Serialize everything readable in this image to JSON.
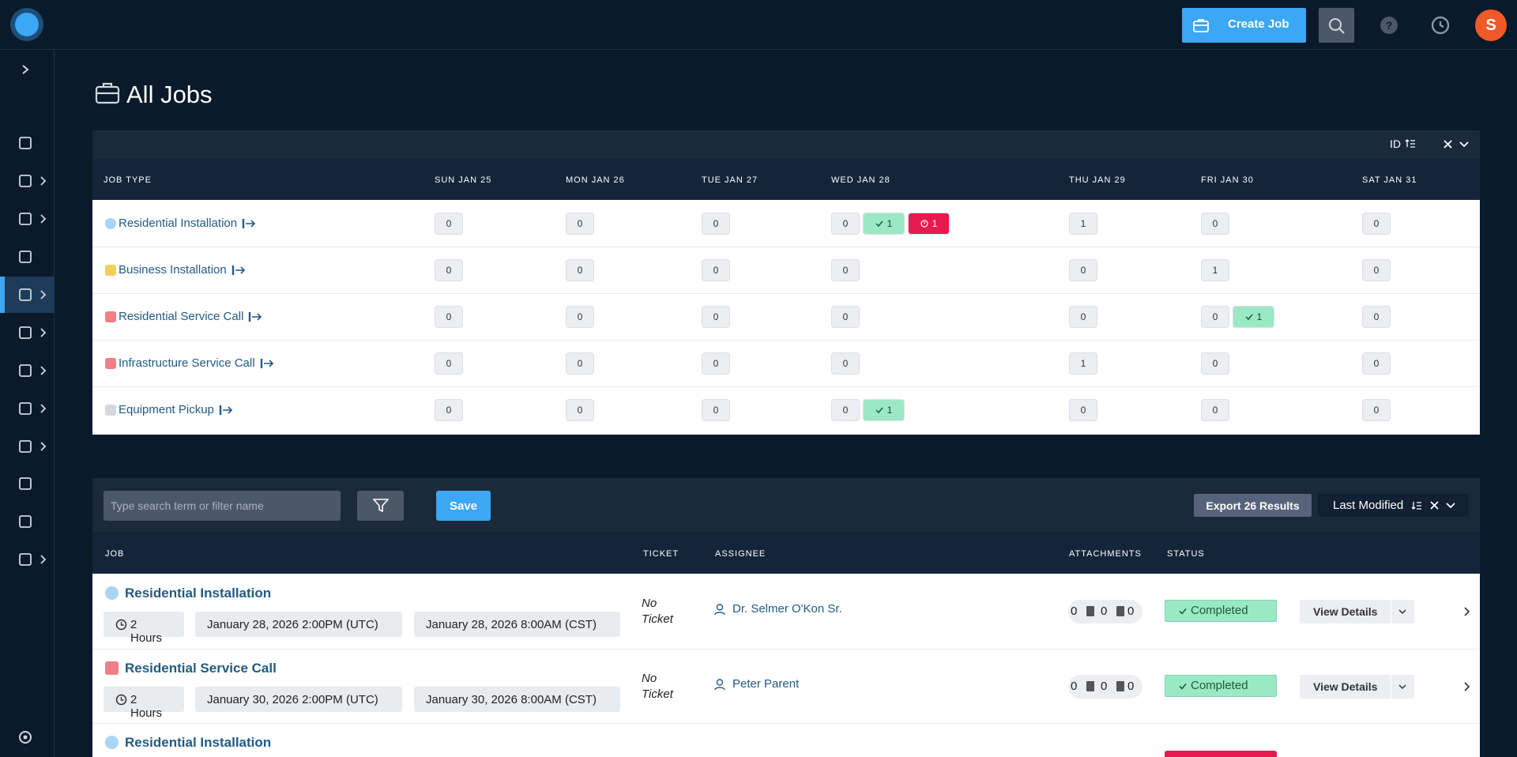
{
  "header": {
    "create_job": "Create Job",
    "avatar": "S"
  },
  "page_title": "All Jobs",
  "calendar": {
    "sort_label": "ID",
    "columns": [
      "JOB TYPE",
      "SUN JAN 25",
      "MON JAN 26",
      "TUE JAN 27",
      "WED JAN 28",
      "THU JAN 29",
      "FRI JAN 30",
      "SAT JAN 31"
    ],
    "rows": [
      {
        "name": "Residential Installation",
        "color": "#a9d4f5",
        "cells": [
          [
            {
              "count": 0
            }
          ],
          [
            {
              "count": 0
            }
          ],
          [
            {
              "count": 0
            }
          ],
          [
            {
              "count": 0
            },
            {
              "count": 1,
              "icon": "check",
              "color": "#9be8c4"
            },
            {
              "count": 1,
              "icon": "alert",
              "color": "#e8194f"
            }
          ],
          [
            {
              "count": 1
            }
          ],
          [
            {
              "count": 0
            }
          ],
          [
            {
              "count": 0
            }
          ]
        ]
      },
      {
        "name": "Business Installation",
        "color": "#f2cf5b",
        "cells": [
          [
            {
              "count": 0
            }
          ],
          [
            {
              "count": 0
            }
          ],
          [
            {
              "count": 0
            }
          ],
          [
            {
              "count": 0
            }
          ],
          [
            {
              "count": 0
            }
          ],
          [
            {
              "count": 1
            }
          ],
          [
            {
              "count": 0
            }
          ]
        ]
      },
      {
        "name": "Residential Service Call",
        "color": "#ef7f86",
        "cells": [
          [
            {
              "count": 0
            }
          ],
          [
            {
              "count": 0
            }
          ],
          [
            {
              "count": 0
            }
          ],
          [
            {
              "count": 0
            }
          ],
          [
            {
              "count": 0
            }
          ],
          [
            {
              "count": 0
            },
            {
              "count": 1,
              "icon": "check",
              "color": "#9be8c4"
            }
          ],
          [
            {
              "count": 0
            }
          ]
        ]
      },
      {
        "name": "Infrastructure Service Call",
        "color": "#ef7f86",
        "cells": [
          [
            {
              "count": 0
            }
          ],
          [
            {
              "count": 0
            }
          ],
          [
            {
              "count": 0
            }
          ],
          [
            {
              "count": 0
            }
          ],
          [
            {
              "count": 1
            }
          ],
          [
            {
              "count": 0
            }
          ],
          [
            {
              "count": 0
            }
          ]
        ]
      },
      {
        "name": "Equipment Pickup",
        "color": "#d5d9de",
        "cells": [
          [
            {
              "count": 0
            }
          ],
          [
            {
              "count": 0
            }
          ],
          [
            {
              "count": 0
            }
          ],
          [
            {
              "count": 0
            },
            {
              "count": 1,
              "icon": "check",
              "color": "#9be8c4"
            }
          ],
          [
            {
              "count": 0
            }
          ],
          [
            {
              "count": 0
            }
          ],
          [
            {
              "count": 0
            }
          ]
        ]
      }
    ]
  },
  "jobs": {
    "search_placeholder": "Type search term or filter name",
    "save": "Save",
    "export": "Export 26 Results",
    "sort": "Last Modified",
    "columns": [
      "JOB",
      "TICKET",
      "ASSIGNEE",
      "ATTACHMENTS",
      "STATUS"
    ],
    "rows": [
      {
        "name": "Residential Installation",
        "color": "#a9d4f5",
        "duration": "2 Hours",
        "start": "January 28, 2026 2:00PM (UTC)",
        "local": "January 28, 2026 8:00AM (CST)",
        "ticket": "No Ticket",
        "assignee": "Dr. Selmer O'Kon Sr.",
        "attachments": [
          0,
          0,
          0
        ],
        "status": "Completed",
        "action": "View Details"
      },
      {
        "name": "Residential Service Call",
        "color": "#ef7f86",
        "duration": "2 Hours",
        "start": "January 30, 2026 2:00PM (UTC)",
        "local": "January 30, 2026 8:00AM (CST)",
        "ticket": "No Ticket",
        "assignee": "Peter Parent",
        "attachments": [
          0,
          0,
          0
        ],
        "status": "Completed",
        "action": "View Details"
      },
      {
        "name": "Residential Installation",
        "color": "#a9d4f5"
      }
    ]
  }
}
